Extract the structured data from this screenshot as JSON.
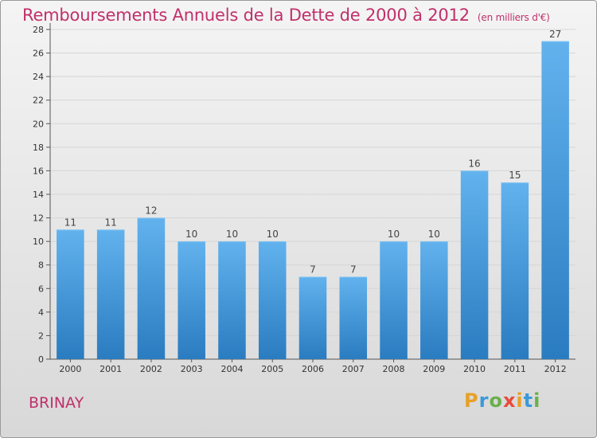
{
  "title": "Remboursements Annuels de la Dette de 2000 à 2012",
  "subtitle": "(en milliers d'€)",
  "commune": "BRINAY",
  "brand": {
    "letters": [
      "P",
      "r",
      "o",
      "x",
      "i",
      "t",
      "i"
    ],
    "colors": [
      "#e8a126",
      "#3a9ad9",
      "#6ab04c",
      "#e84b3a",
      "#e8a126",
      "#3a9ad9",
      "#6ab04c"
    ]
  },
  "colors": {
    "title": "#c0306a",
    "bar_top": "#62b2ee",
    "bar_bottom": "#2a7cc0",
    "grid": "#d5d5d5"
  },
  "chart_data": {
    "type": "bar",
    "categories": [
      "2000",
      "2001",
      "2002",
      "2003",
      "2004",
      "2005",
      "2006",
      "2007",
      "2008",
      "2009",
      "2010",
      "2011",
      "2012"
    ],
    "values": [
      11,
      11,
      12,
      10,
      10,
      10,
      7,
      7,
      10,
      10,
      16,
      15,
      27
    ],
    "title": "Remboursements Annuels de la Dette de 2000 à 2012",
    "subtitle": "(en milliers d'€)",
    "ylim": [
      0,
      28
    ],
    "yticks": [
      0,
      2,
      4,
      6,
      8,
      10,
      12,
      14,
      16,
      18,
      20,
      22,
      24,
      26,
      28
    ],
    "grid": true
  }
}
